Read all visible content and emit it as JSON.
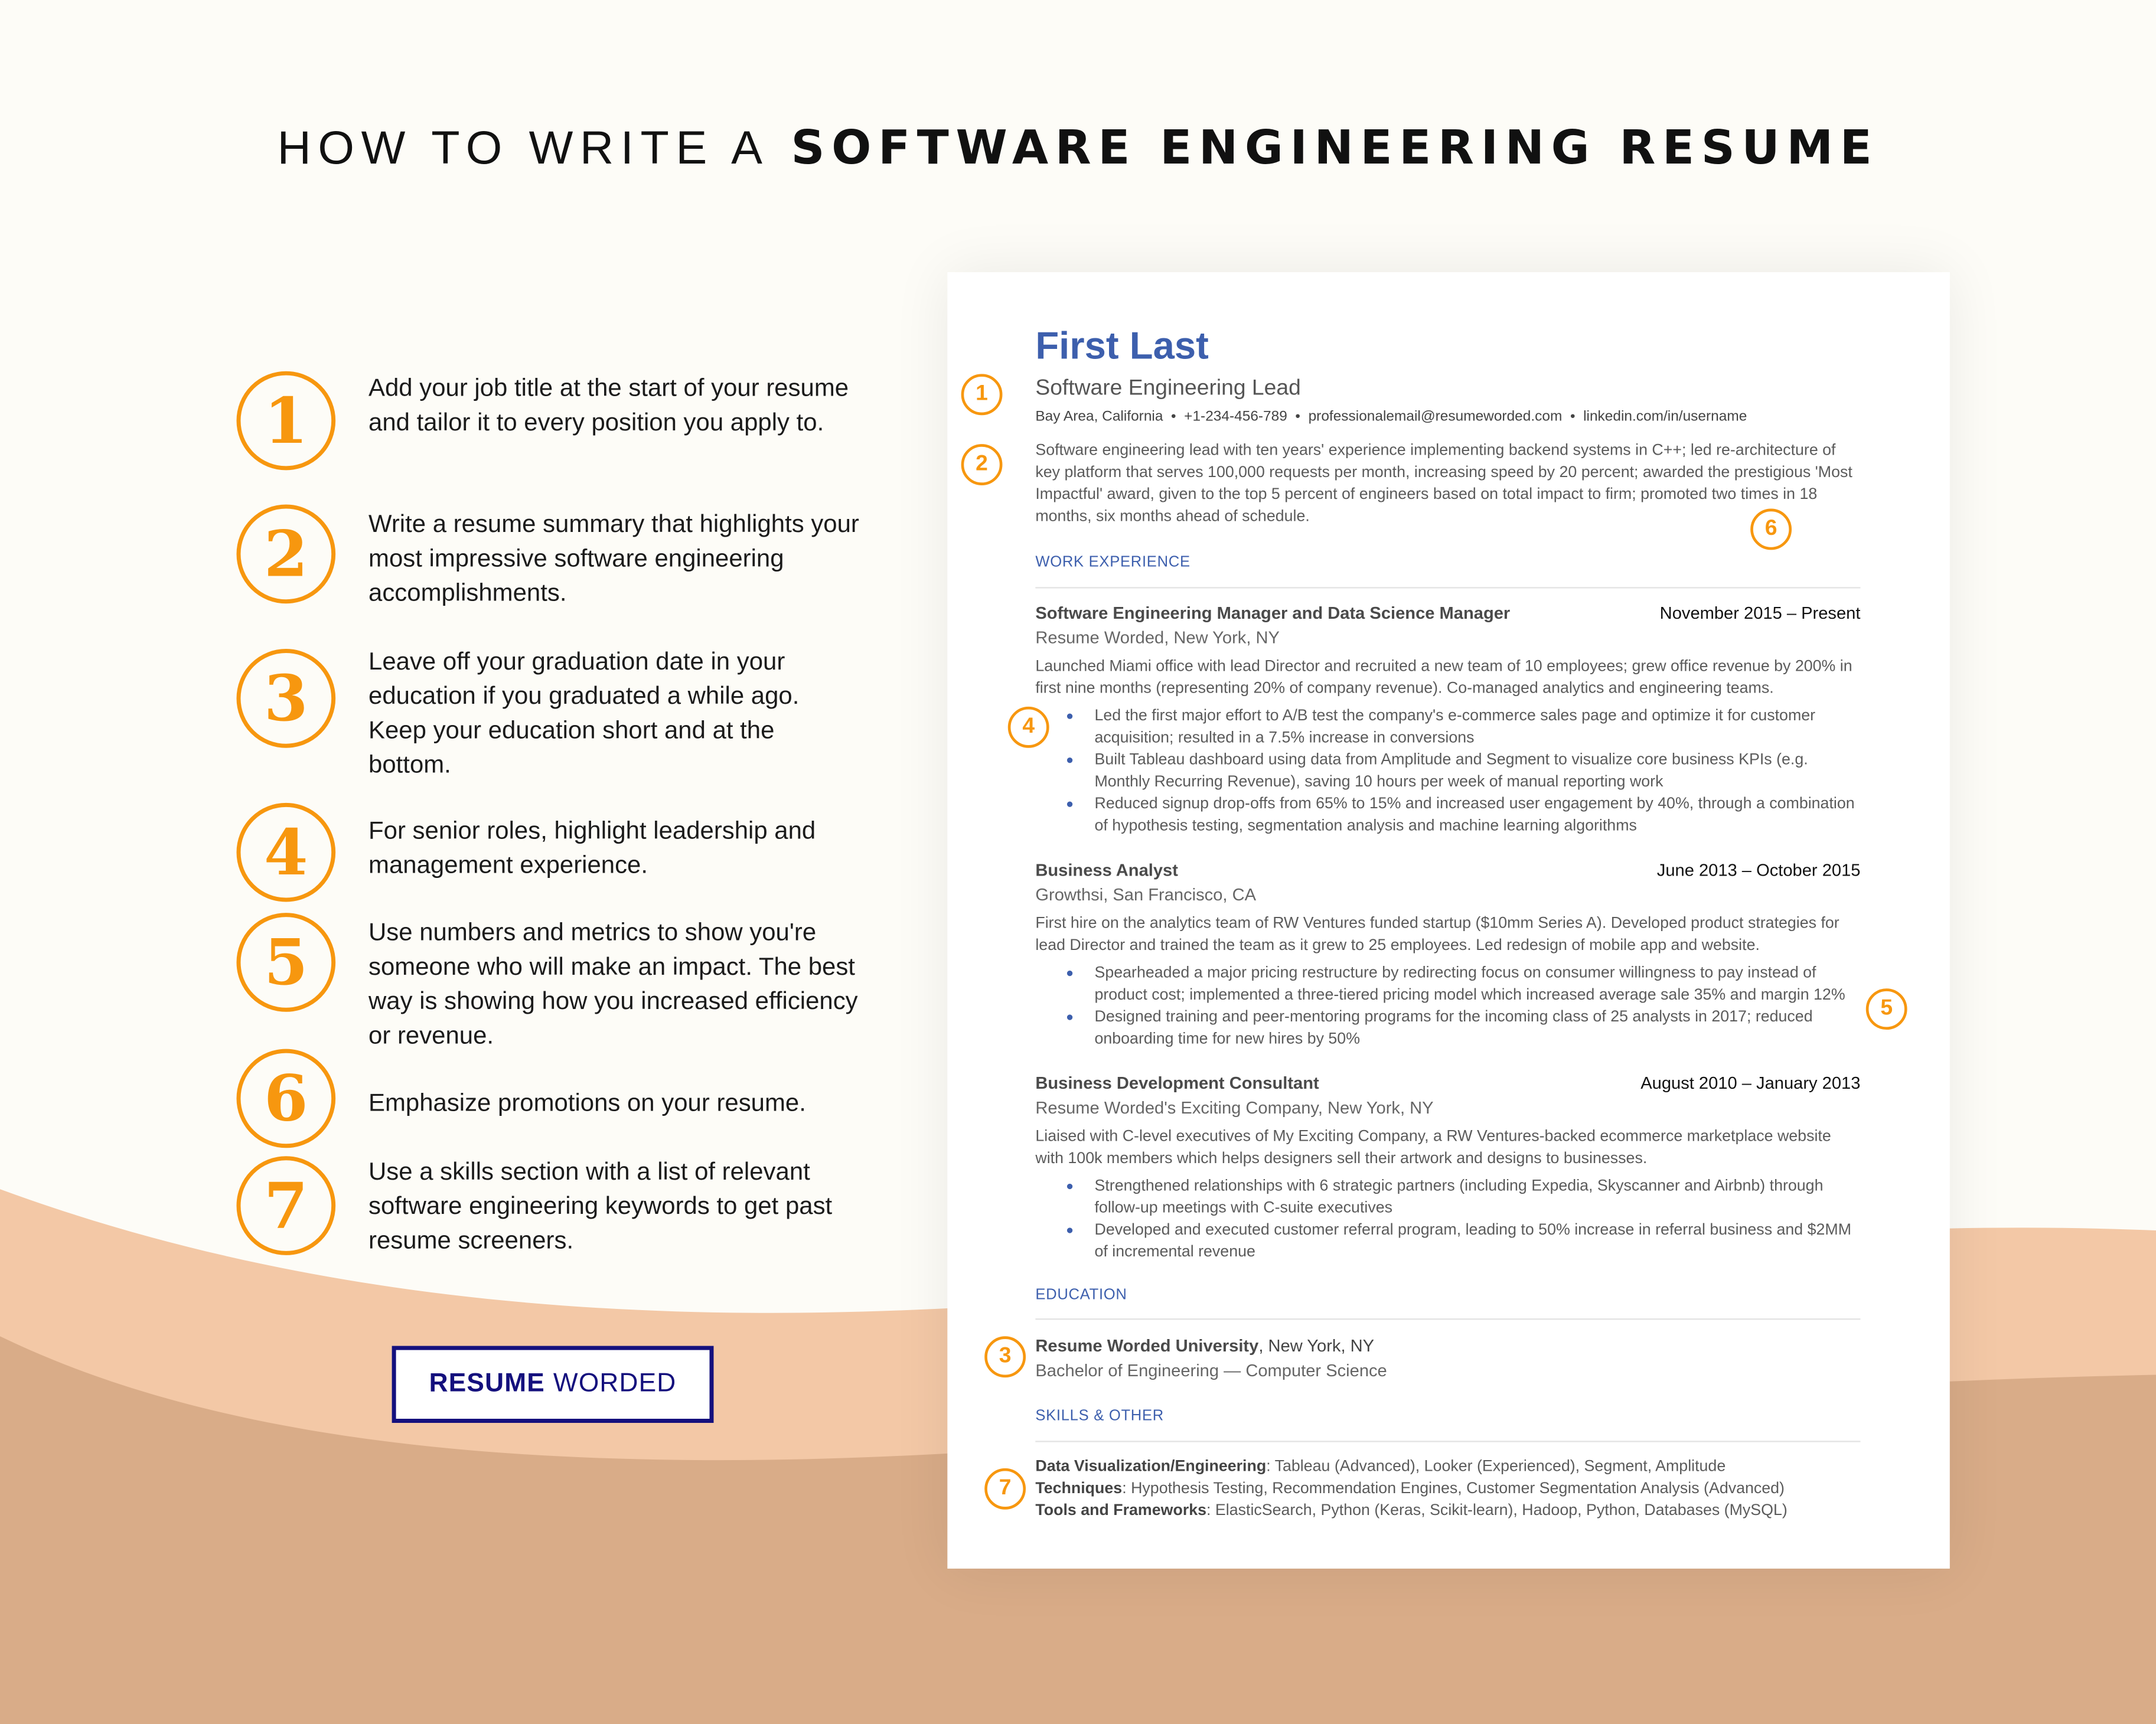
{
  "header": {
    "title_light": "HOW TO WRITE A",
    "title_bold": "SOFTWARE ENGINEERING RESUME"
  },
  "colors": {
    "accent_orange": "#f7970f",
    "resume_blue": "#3d5fad",
    "logo_navy": "#14107d",
    "wave_peach": "#f3c8a6",
    "wave_tan": "#d9ac88"
  },
  "tips": [
    {
      "number": "1",
      "text": "Add your job title at the start of your resume and tailor it to every position you apply to."
    },
    {
      "number": "2",
      "text": "Write a resume summary that highlights your most impressive software engineering accomplishments."
    },
    {
      "number": "3",
      "text": "Leave off your graduation date in your education if you graduated a while ago. Keep your education short and at the bottom."
    },
    {
      "number": "4",
      "text": "For senior roles, highlight leadership and management experience."
    },
    {
      "number": "5",
      "text": "Use numbers and metrics to show you're someone who will make an impact. The best way is showing how you increased efficiency or revenue."
    },
    {
      "number": "6",
      "text": "Emphasize promotions on your resume."
    },
    {
      "number": "7",
      "text": "Use a skills section with a list of relevant software engineering keywords to get past resume screeners."
    }
  ],
  "logo": {
    "bold": "RESUME",
    "light": "WORDED"
  },
  "resume": {
    "name": "First Last",
    "title": "Software Engineering Lead",
    "contact": "Bay Area, California  •  +1-234-456-789  •  professionalemail@resumeworded.com  •  linkedin.com/in/username",
    "summary": "Software engineering lead with ten years' experience implementing backend systems in C++; led re-architecture of key platform that serves 100,000 requests per month, increasing speed by 20 percent; awarded the prestigious 'Most Impactful' award, given to the top 5 percent of engineers based on total impact to firm; promoted two times in 18 months, six months ahead of schedule.",
    "work_heading": "WORK EXPERIENCE",
    "jobs": [
      {
        "title": "Software Engineering Manager and Data Science Manager",
        "dates": "November 2015 – Present",
        "company": "Resume Worded, New York, NY",
        "description": "Launched Miami office with lead Director and recruited a new team of 10 employees; grew office revenue by 200% in first nine months (representing 20% of company revenue). Co-managed analytics and engineering teams.",
        "bullets": [
          "Led the first major effort to A/B test the company's e-commerce sales page and optimize it for customer acquisition; resulted in a 7.5% increase in conversions",
          "Built Tableau dashboard using data from Amplitude and Segment to visualize core business KPIs (e.g. Monthly Recurring Revenue), saving 10 hours per week of manual reporting work",
          "Reduced signup drop-offs from 65% to 15% and increased user engagement by 40%, through a combination of hypothesis testing, segmentation analysis and machine learning algorithms"
        ]
      },
      {
        "title": "Business Analyst",
        "dates": "June 2013 – October 2015",
        "company": "Growthsi, San Francisco, CA",
        "description": "First hire on the analytics team of RW Ventures funded startup ($10mm Series A). Developed product strategies for lead Director and trained the team as it grew to 25 employees. Led redesign of mobile app and website.",
        "bullets": [
          "Spearheaded a major pricing restructure by redirecting focus on consumer willingness to pay instead of product cost; implemented a three-tiered pricing model which increased average sale 35% and margin 12%",
          "Designed training and peer-mentoring programs for the incoming class of 25 analysts in 2017; reduced onboarding time for new hires by 50%"
        ]
      },
      {
        "title": "Business Development Consultant",
        "dates": "August 2010 – January 2013",
        "company": "Resume Worded's Exciting Company, New York, NY",
        "description": "Liaised with C-level executives of My Exciting Company, a RW Ventures-backed ecommerce marketplace website with 100k members which helps designers sell their artwork and designs to businesses.",
        "bullets": [
          "Strengthened relationships with 6 strategic partners (including Expedia, Skyscanner and Airbnb) through follow-up meetings with C-suite executives",
          "Developed and executed customer referral program, leading to 50% increase in referral business and $2MM of incremental revenue"
        ]
      }
    ],
    "education_heading": "EDUCATION",
    "school": "Resume Worded University",
    "school_location": ", New York, NY",
    "degree": "Bachelor of Engineering — Computer Science",
    "skills_heading": "SKILLS & OTHER",
    "skills": [
      {
        "label": "Data Visualization/Engineering",
        "value": ": Tableau (Advanced), Looker (Experienced), Segment, Amplitude"
      },
      {
        "label": "Techniques",
        "value": ": Hypothesis Testing, Recommendation Engines, Customer Segmentation Analysis (Advanced)"
      },
      {
        "label": "Tools and Frameworks",
        "value": ": ElasticSearch, Python (Keras, Scikit-learn), Hadoop, Python, Databases (MySQL)"
      }
    ],
    "badges": [
      "1",
      "2",
      "6",
      "4",
      "5",
      "3",
      "7"
    ]
  }
}
